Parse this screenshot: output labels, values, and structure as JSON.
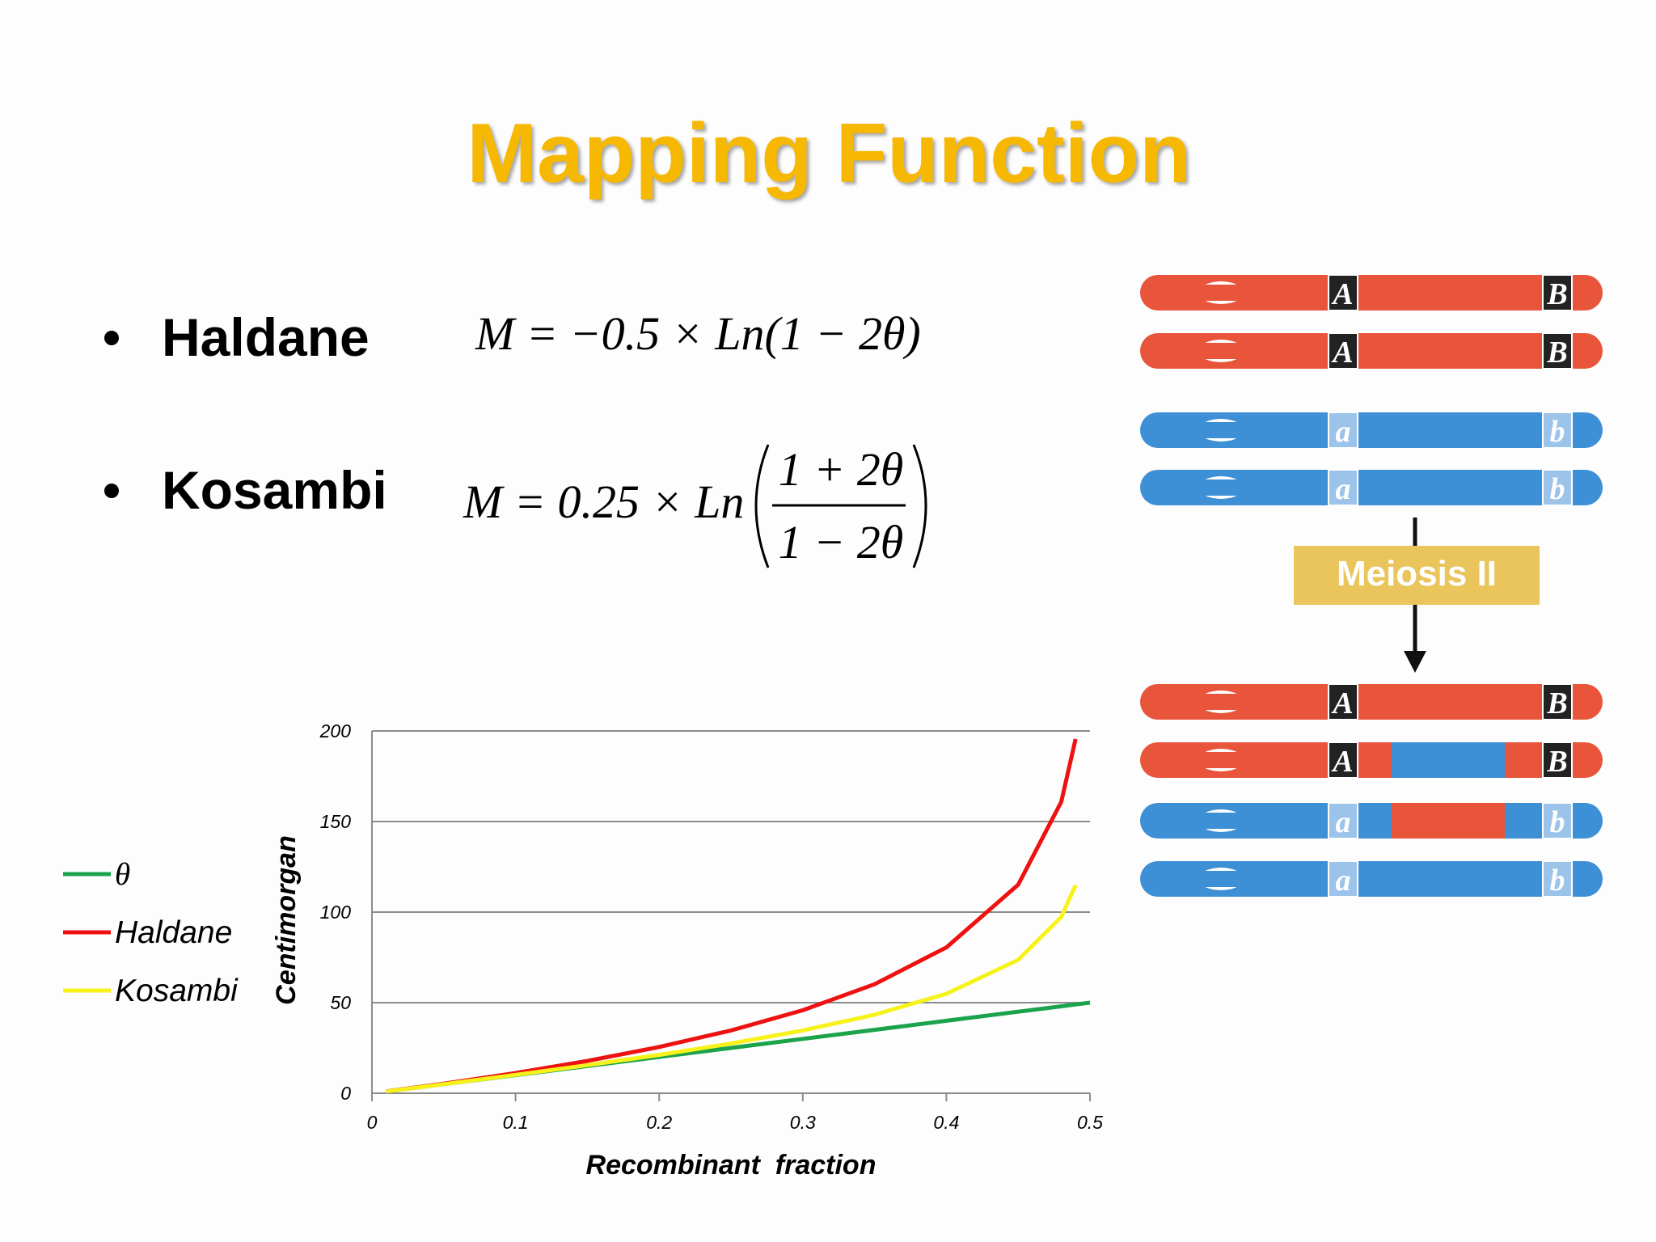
{
  "slide": {
    "title": "Mapping Function",
    "bullets": [
      {
        "label": "Haldane",
        "formula": "M = −0.5 × Ln(1 − 2θ)"
      },
      {
        "label": "Kosambi",
        "formula": "M = 0.25 × Ln",
        "numerator": "1 + 2θ",
        "denominator": "1 − 2θ"
      }
    ]
  },
  "diagram": {
    "before": [
      {
        "left": "A",
        "right": "B"
      },
      {
        "left": "A",
        "right": "B"
      },
      {
        "left": "a",
        "right": "b"
      },
      {
        "left": "a",
        "right": "b"
      }
    ],
    "step": "Meiosis II",
    "after": [
      {
        "left": "A",
        "right": "B"
      },
      {
        "left": "A",
        "right": "B"
      },
      {
        "left": "a",
        "right": "b"
      },
      {
        "left": "a",
        "right": "b"
      }
    ]
  },
  "chart_data": {
    "type": "line",
    "x_label": "Recombinant  fraction",
    "y_label": "Centimorgan",
    "x": [
      0.01,
      0.05,
      0.1,
      0.15,
      0.2,
      0.25,
      0.3,
      0.35,
      0.4,
      0.45,
      0.48,
      0.49,
      0.5
    ],
    "series": [
      {
        "name": "θ",
        "color": "#1aa34a",
        "values": [
          1,
          5,
          10,
          15,
          20,
          25,
          30,
          35,
          40,
          45,
          48,
          49,
          50
        ]
      },
      {
        "name": "Haldane",
        "color": "#ee1111",
        "values": [
          1.01,
          5.27,
          11.16,
          17.83,
          25.54,
          34.66,
          45.81,
          60.2,
          80.47,
          115.13,
          160.9,
          195.6,
          null
        ]
      },
      {
        "name": "Kosambi",
        "color": "#f7f21a",
        "values": [
          1.0,
          5.02,
          10.14,
          15.48,
          21.18,
          27.47,
          34.66,
          43.37,
          54.93,
          73.61,
          97.3,
          114.9,
          null
        ]
      }
    ],
    "xlim": [
      0,
      0.5
    ],
    "xticks": [
      0,
      0.1,
      0.2,
      0.3,
      0.4,
      0.5
    ],
    "ylim": [
      0,
      200
    ],
    "yticks": [
      0,
      50,
      100,
      150,
      200
    ],
    "grid": true,
    "legend": "left"
  }
}
